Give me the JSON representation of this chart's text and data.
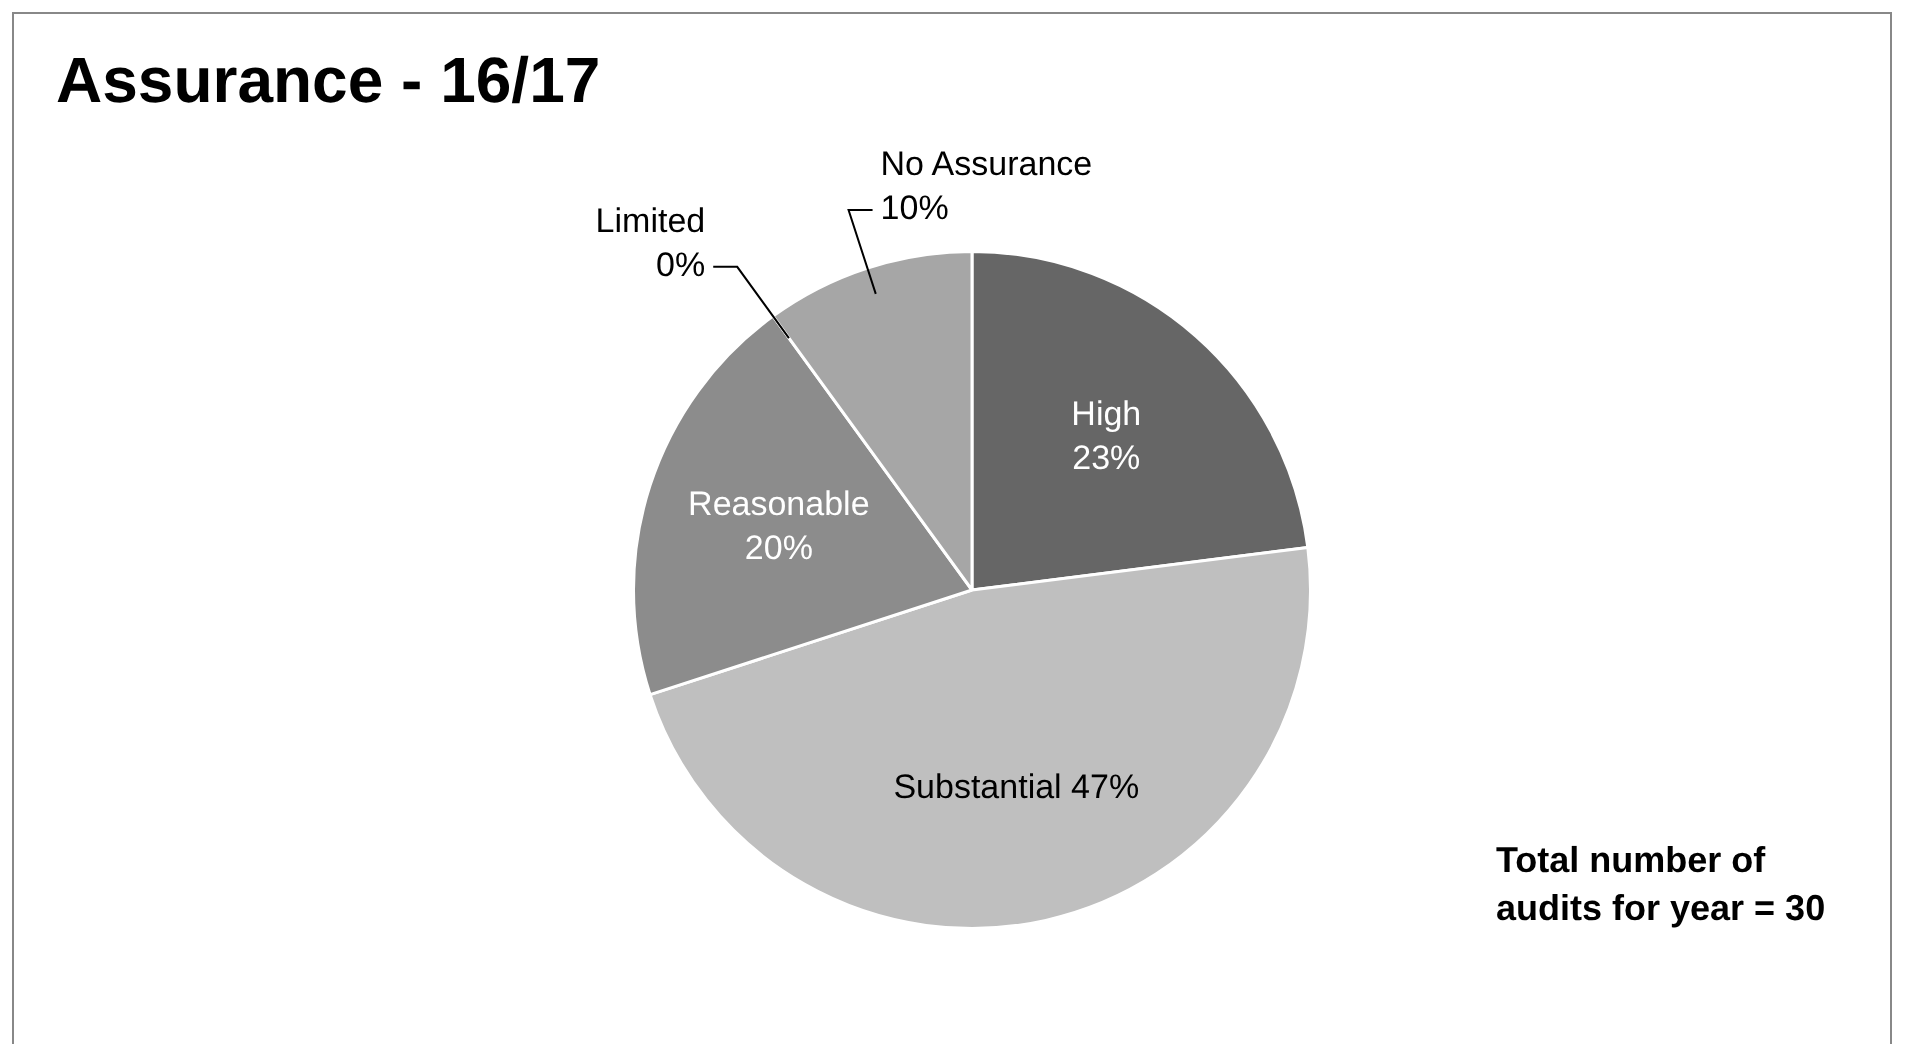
{
  "chart_data": {
    "type": "pie",
    "title": "Assurance - 16/17",
    "categories": [
      "High",
      "Substantial",
      "Reasonable",
      "Limited",
      "No Assurance"
    ],
    "values": [
      23,
      47,
      20,
      0,
      10
    ],
    "value_labels": [
      "23%",
      "47%",
      "20%",
      "0%",
      "10%"
    ],
    "colors": [
      "#666666",
      "#bfbfbf",
      "#8c8c8c",
      "#7a7a7a",
      "#a6a6a6"
    ],
    "legend": false,
    "annotations": [
      "Total number of audits for year = 30"
    ]
  }
}
